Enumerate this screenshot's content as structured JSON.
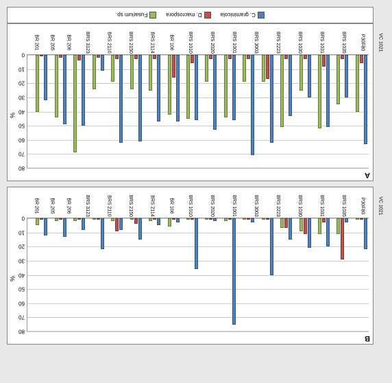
{
  "ylabel": "%",
  "categories": [
    "BR 201",
    "BR 205",
    "BR 206",
    "BRS 3123",
    "BRS 2110",
    "BRS 2150",
    "BRS 2114",
    "BR 106",
    "BRS 1010",
    "BRS 2020",
    "BRS 1001",
    "BRS 3003",
    "BRS 2223",
    "BRS 1030",
    "BRS 1031",
    "BRS 1035",
    "P30F80",
    "VC 1021"
  ],
  "series": [
    {
      "name": "C. graminicola",
      "color": "#4f81bd"
    },
    {
      "name": "D. macrospora",
      "color": "#c0504d"
    },
    {
      "name": "Fusarium sp.",
      "color": "#9bbb59"
    }
  ],
  "panels": [
    {
      "label": "A",
      "ylim": [
        0,
        80
      ],
      "ytick_step": 10,
      "data": {
        "C. graminicola": [
          32,
          49,
          50,
          11,
          62,
          61,
          47,
          47,
          46,
          53,
          46,
          71,
          62,
          43,
          30,
          51,
          30,
          63
        ],
        "D. macrospora": [
          1,
          2,
          4,
          2,
          3,
          3,
          3,
          16,
          6,
          3,
          3,
          3,
          17,
          3,
          3,
          8,
          3,
          6
        ],
        "Fusarium sp.": [
          40,
          44,
          69,
          24,
          19,
          24,
          25,
          42,
          45,
          19,
          44,
          19,
          19,
          51,
          25,
          52,
          35,
          40
        ]
      }
    },
    {
      "label": "B",
      "ylim": [
        0,
        80
      ],
      "ytick_step": 10,
      "data": {
        "C. graminicola": [
          12,
          13,
          8,
          22,
          8,
          15,
          5,
          3,
          36,
          2,
          75,
          3,
          40,
          15,
          21,
          20,
          3,
          22
        ],
        "D. macrospora": [
          1,
          1,
          1,
          1,
          9,
          4,
          1,
          1,
          1,
          1,
          1,
          1,
          1,
          7,
          11,
          3,
          29,
          1
        ],
        "Fusarium sp.": [
          5,
          2,
          2,
          1,
          2,
          1,
          2,
          6,
          1,
          1,
          2,
          1,
          1,
          7,
          9,
          11,
          11,
          1
        ]
      }
    }
  ]
}
